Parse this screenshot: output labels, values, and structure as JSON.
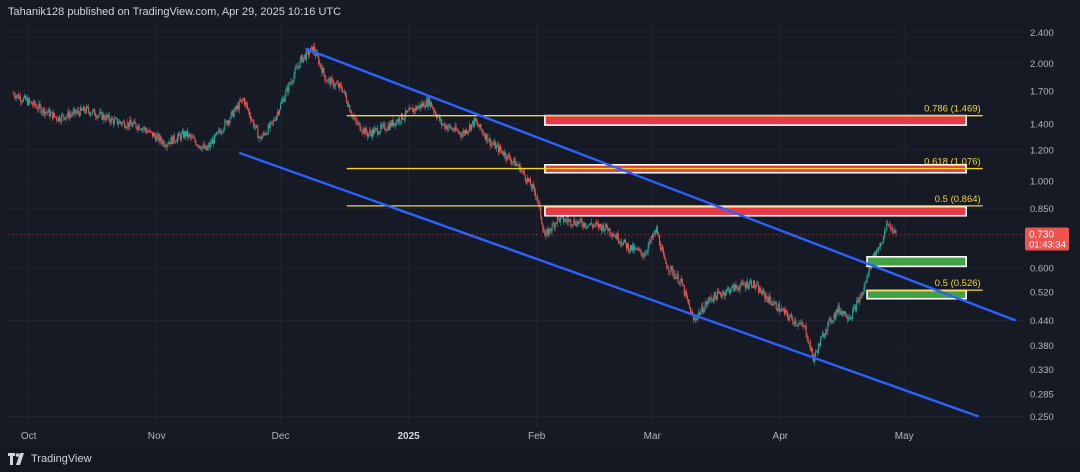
{
  "header": {
    "text": "Tahanik128 published on TradingView.com, Apr 29, 2025 10:16 UTC"
  },
  "footer": {
    "brand": "TradingView"
  },
  "colors": {
    "background": "#161a25",
    "up": "#26a69a",
    "down": "#ef5350",
    "channel": "#2962ff",
    "fib": "#f5d533",
    "resistance_zone": "#e53946",
    "support_zone": "#43a047",
    "price_badge": "#ef5350"
  },
  "chart_data": {
    "type": "candlestick",
    "title": "",
    "y_scale": "log",
    "ylim": [
      0.235,
      2.55
    ],
    "xlim": [
      "2024-09-26",
      "2025-05-30"
    ],
    "y_ticks": [
      2.4,
      2.0,
      1.7,
      1.4,
      1.2,
      1.0,
      0.85,
      0.72,
      0.6,
      0.52,
      0.44,
      0.38,
      0.33,
      0.285,
      0.25
    ],
    "y_tick_labels": [
      "2.400",
      "2.000",
      "1.700",
      "1.400",
      "1.200",
      "1.000",
      "0.850",
      "",
      "0.600",
      "0.520",
      "0.440",
      "0.380",
      "0.330",
      "0.285",
      "0.250"
    ],
    "x_ticks": [
      {
        "label": "Oct",
        "date": "2024-10-01",
        "bold": false
      },
      {
        "label": "Nov",
        "date": "2024-11-01",
        "bold": false
      },
      {
        "label": "Dec",
        "date": "2024-12-01",
        "bold": false
      },
      {
        "label": "2025",
        "date": "2025-01-01",
        "bold": true
      },
      {
        "label": "Feb",
        "date": "2025-02-01",
        "bold": false
      },
      {
        "label": "Mar",
        "date": "2025-03-01",
        "bold": false
      },
      {
        "label": "Apr",
        "date": "2025-04-01",
        "bold": false
      },
      {
        "label": "May",
        "date": "2025-05-01",
        "bold": false
      }
    ],
    "current_price": {
      "label": "0.730",
      "value": 0.73,
      "countdown": "01:43:34"
    },
    "price_path": [
      [
        "2024-09-27",
        1.68
      ],
      [
        "2024-10-03",
        1.55
      ],
      [
        "2024-10-08",
        1.45
      ],
      [
        "2024-10-15",
        1.52
      ],
      [
        "2024-10-22",
        1.42
      ],
      [
        "2024-10-28",
        1.38
      ],
      [
        "2024-11-03",
        1.25
      ],
      [
        "2024-11-08",
        1.32
      ],
      [
        "2024-11-13",
        1.2
      ],
      [
        "2024-11-18",
        1.42
      ],
      [
        "2024-11-22",
        1.62
      ],
      [
        "2024-11-26",
        1.28
      ],
      [
        "2024-11-29",
        1.4
      ],
      [
        "2024-12-03",
        1.75
      ],
      [
        "2024-12-06",
        2.05
      ],
      [
        "2024-12-09",
        2.18
      ],
      [
        "2024-12-12",
        1.82
      ],
      [
        "2024-12-16",
        1.72
      ],
      [
        "2024-12-19",
        1.42
      ],
      [
        "2024-12-22",
        1.32
      ],
      [
        "2024-12-27",
        1.38
      ],
      [
        "2025-01-02",
        1.52
      ],
      [
        "2025-01-06",
        1.6
      ],
      [
        "2025-01-09",
        1.4
      ],
      [
        "2025-01-14",
        1.32
      ],
      [
        "2025-01-17",
        1.42
      ],
      [
        "2025-01-21",
        1.25
      ],
      [
        "2025-01-24",
        1.18
      ],
      [
        "2025-01-28",
        1.08
      ],
      [
        "2025-02-01",
        0.92
      ],
      [
        "2025-02-03",
        0.72
      ],
      [
        "2025-02-06",
        0.8
      ],
      [
        "2025-02-12",
        0.78
      ],
      [
        "2025-02-18",
        0.76
      ],
      [
        "2025-02-23",
        0.68
      ],
      [
        "2025-02-27",
        0.65
      ],
      [
        "2025-03-02",
        0.75
      ],
      [
        "2025-03-04",
        0.62
      ],
      [
        "2025-03-08",
        0.55
      ],
      [
        "2025-03-11",
        0.44
      ],
      [
        "2025-03-15",
        0.5
      ],
      [
        "2025-03-20",
        0.53
      ],
      [
        "2025-03-25",
        0.55
      ],
      [
        "2025-03-29",
        0.5
      ],
      [
        "2025-04-03",
        0.45
      ],
      [
        "2025-04-07",
        0.42
      ],
      [
        "2025-04-09",
        0.35
      ],
      [
        "2025-04-12",
        0.42
      ],
      [
        "2025-04-15",
        0.47
      ],
      [
        "2025-04-18",
        0.45
      ],
      [
        "2025-04-21",
        0.52
      ],
      [
        "2025-04-23",
        0.62
      ],
      [
        "2025-04-26",
        0.72
      ],
      [
        "2025-04-27",
        0.78
      ],
      [
        "2025-04-29",
        0.73
      ]
    ],
    "fib_levels": [
      {
        "label": "0.786 (1.469)",
        "price": 1.469,
        "start": "2024-12-17",
        "end": "2025-05-20"
      },
      {
        "label": "0.618 (1.076)",
        "price": 1.076,
        "start": "2024-12-17",
        "end": "2025-05-20"
      },
      {
        "label": "0.5 (0.864)",
        "price": 0.864,
        "start": "2024-12-17",
        "end": "2025-05-20"
      },
      {
        "label": "0.5 (0.526)",
        "price": 0.526,
        "start": "2025-04-22",
        "end": "2025-05-20"
      }
    ],
    "channel_lines": [
      {
        "start": [
          "2024-12-07",
          2.18
        ],
        "end": [
          "2025-05-28",
          0.44
        ]
      },
      {
        "start": [
          "2024-11-21",
          1.18
        ],
        "end": [
          "2025-05-19",
          0.25
        ]
      }
    ],
    "resistance_zones": [
      {
        "start": "2025-02-03",
        "end": "2025-05-16",
        "high": 1.47,
        "low": 1.39
      },
      {
        "start": "2025-02-03",
        "end": "2025-05-16",
        "high": 1.1,
        "low": 1.05
      },
      {
        "start": "2025-02-03",
        "end": "2025-05-16",
        "high": 0.86,
        "low": 0.815
      }
    ],
    "support_zones": [
      {
        "start": "2025-04-22",
        "end": "2025-05-16",
        "high": 0.64,
        "low": 0.605
      },
      {
        "start": "2025-04-22",
        "end": "2025-05-16",
        "high": 0.525,
        "low": 0.5
      }
    ]
  }
}
